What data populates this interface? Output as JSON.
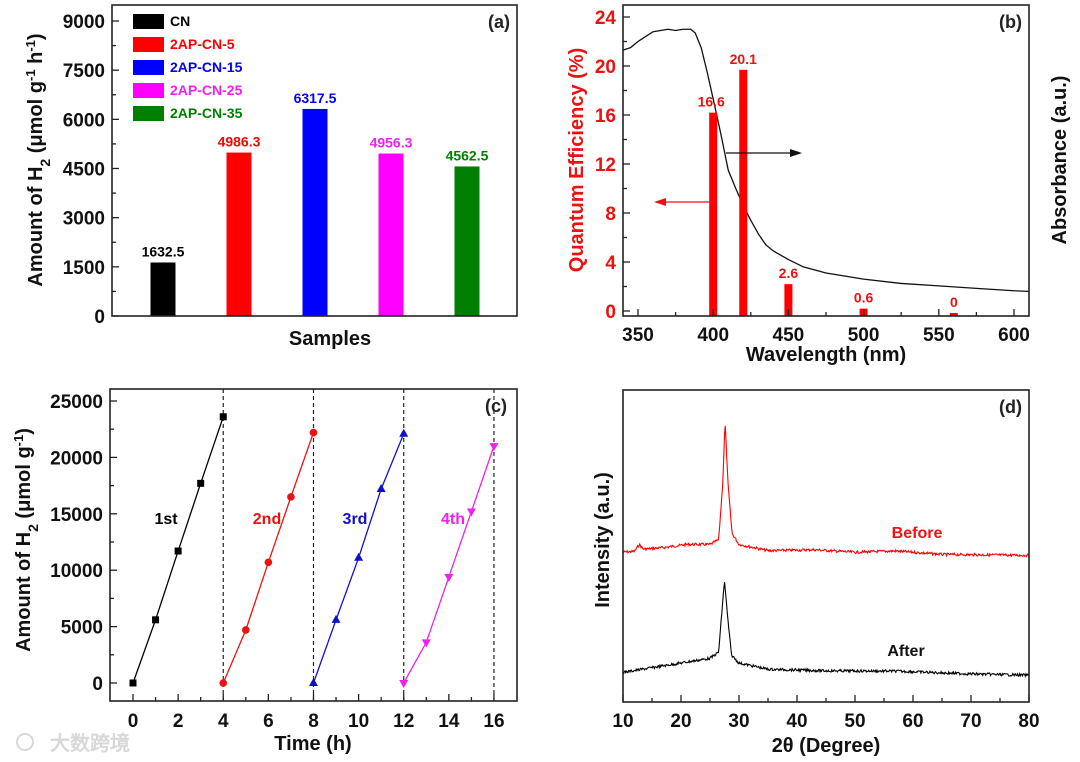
{
  "watermark": "大数跨境",
  "chart_data": [
    {
      "panel": "(a)",
      "type": "bar",
      "xlabel": "Samples",
      "ylabel": {
        "main": "Amount of H",
        "sub": "2",
        "unit": " (μmol g",
        "sup1": "-1",
        "unit2": " h",
        "sup2": "-1",
        "close": ")"
      },
      "ylim": [
        0,
        9500
      ],
      "yticks": [
        0,
        1500,
        3000,
        4500,
        6000,
        7500,
        9000
      ],
      "categories": [
        "CN",
        "2AP-CN-5",
        "2AP-CN-15",
        "2AP-CN-25",
        "2AP-CN-35"
      ],
      "values": [
        1632.5,
        4986.3,
        6317.5,
        4956.3,
        4562.5
      ],
      "value_labels": [
        "1632.5",
        "4986.3",
        "6317.5",
        "4956.3",
        "4562.5"
      ],
      "colors": [
        "#000000",
        "#ff0000",
        "#0000ff",
        "#ff00ff",
        "#007f00"
      ],
      "legend": "top-left"
    },
    {
      "panel": "(b)",
      "type": "bar+line",
      "xlabel": "Wavelength (nm)",
      "ylabel_left": "Quantum Efficiency (%)",
      "ylabel_right": "Absorbance (a.u.)",
      "xlim": [
        340,
        610
      ],
      "xticks": [
        350,
        400,
        450,
        500,
        550,
        600
      ],
      "ylim": [
        -0.5,
        25
      ],
      "yticks": [
        0,
        4,
        8,
        12,
        16,
        20,
        24
      ],
      "bars": {
        "x": [
          400,
          420,
          450,
          500,
          560
        ],
        "values": [
          16.6,
          20.1,
          2.6,
          0.6,
          0
        ],
        "labels": [
          "16.6",
          "20.1",
          "2.6",
          "0.6",
          "0"
        ],
        "color": "#ff0000"
      },
      "absorbance": [
        [
          340,
          21.3
        ],
        [
          345,
          21.5
        ],
        [
          350,
          22
        ],
        [
          355,
          22.4
        ],
        [
          360,
          22.8
        ],
        [
          370,
          23
        ],
        [
          375,
          22.9
        ],
        [
          380,
          23
        ],
        [
          385,
          23
        ],
        [
          388,
          22.7
        ],
        [
          392,
          21.5
        ],
        [
          396,
          19.5
        ],
        [
          400,
          17.3
        ],
        [
          405,
          14.5
        ],
        [
          410,
          11.5
        ],
        [
          415,
          10
        ],
        [
          420,
          8.6
        ],
        [
          425,
          7.4
        ],
        [
          430,
          6.3
        ],
        [
          435,
          5.4
        ],
        [
          440,
          4.9
        ],
        [
          450,
          4.2
        ],
        [
          460,
          3.6
        ],
        [
          475,
          3.1
        ],
        [
          500,
          2.6
        ],
        [
          525,
          2.25
        ],
        [
          550,
          2.05
        ],
        [
          575,
          1.85
        ],
        [
          600,
          1.65
        ],
        [
          610,
          1.6
        ]
      ]
    },
    {
      "panel": "(c)",
      "type": "line",
      "xlabel": "Time (h)",
      "ylabel": {
        "main": "Amount of H",
        "sub": "2",
        "unit": " (μmol g",
        "sup1": "-1",
        "close": ")"
      },
      "xlim": [
        -1,
        17
      ],
      "xticks": [
        0,
        2,
        4,
        6,
        8,
        10,
        12,
        14,
        16
      ],
      "ylim": [
        -1500,
        26000
      ],
      "yticks": [
        0,
        5000,
        10000,
        15000,
        20000,
        25000
      ],
      "dividers": [
        4,
        8,
        12,
        16
      ],
      "series": [
        {
          "name": "1st",
          "color": "#000000",
          "marker": "square",
          "x": [
            0,
            1,
            2,
            3,
            4
          ],
          "y": [
            0,
            5600,
            11700,
            17700,
            23600
          ]
        },
        {
          "name": "2nd",
          "color": "#ee1111",
          "marker": "circle",
          "x": [
            4,
            5,
            6,
            7,
            8
          ],
          "y": [
            0,
            4700,
            10700,
            16500,
            22200
          ]
        },
        {
          "name": "3rd",
          "color": "#1010cc",
          "marker": "triangle-up",
          "x": [
            8,
            9,
            10,
            11,
            12
          ],
          "y": [
            0,
            5600,
            11100,
            17200,
            22100
          ]
        },
        {
          "name": "4th",
          "color": "#ee22ee",
          "marker": "triangle-down",
          "x": [
            12,
            13,
            14,
            15,
            16
          ],
          "y": [
            0,
            3600,
            9400,
            15200,
            21000
          ]
        }
      ]
    },
    {
      "panel": "(d)",
      "type": "line",
      "xlabel": "2θ (Degree)",
      "ylabel": "Intensity (a.u.)",
      "xlim": [
        10,
        80
      ],
      "xticks": [
        10,
        20,
        30,
        40,
        50,
        60,
        70,
        80
      ],
      "ylim": [
        0,
        100
      ],
      "series": [
        {
          "name": "Before",
          "color": "#ff0000",
          "points": [
            [
              10,
              48
            ],
            [
              12,
              48.3
            ],
            [
              12.8,
              50.5
            ],
            [
              13.5,
              49
            ],
            [
              17,
              49.5
            ],
            [
              21,
              50.5
            ],
            [
              25,
              50.5
            ],
            [
              26.5,
              52
            ],
            [
              27.2,
              70
            ],
            [
              27.6,
              90
            ],
            [
              28.1,
              70
            ],
            [
              28.8,
              54
            ],
            [
              30,
              50.5
            ],
            [
              35,
              48.5
            ],
            [
              43,
              48.8
            ],
            [
              50,
              48
            ],
            [
              57,
              48.4
            ],
            [
              65,
              47.3
            ],
            [
              80,
              47
            ]
          ]
        },
        {
          "name": "After",
          "color": "#000000",
          "points": [
            [
              10,
              9.5
            ],
            [
              15,
              11
            ],
            [
              20,
              12.5
            ],
            [
              25,
              14
            ],
            [
              26.5,
              16
            ],
            [
              27.1,
              30
            ],
            [
              27.5,
              39
            ],
            [
              28,
              28
            ],
            [
              28.7,
              15
            ],
            [
              30,
              12.5
            ],
            [
              35,
              10.5
            ],
            [
              45,
              10
            ],
            [
              57,
              9.9
            ],
            [
              70,
              9
            ],
            [
              80,
              8.6
            ]
          ]
        }
      ]
    }
  ]
}
